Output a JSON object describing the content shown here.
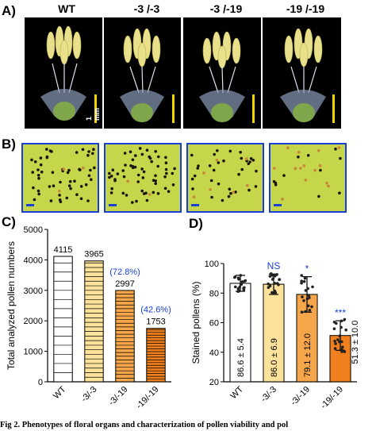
{
  "panels": {
    "A": "A)",
    "B": "B)",
    "C": "C)",
    "D": "D)"
  },
  "genotypes": [
    "WT",
    "-3 /-3",
    "-3 /-19",
    "-19 /-19"
  ],
  "scale_label": "1 mm",
  "colors": {
    "scale_bar": "#f2d500",
    "frame_blue": "#1a3fd6",
    "annot_blue": "#1a3fd6",
    "bar_wt": "#ffffff",
    "bar_3_3": "#fce29a",
    "bar_3_19": "#f5a54a",
    "bar_19_19": "#f07f1e"
  },
  "chart_data": [
    {
      "type": "bar",
      "ylabel": "Total analyzed pollen numbers",
      "categories": [
        "WT",
        "-3/-3",
        "-3/-19",
        "-19/-19"
      ],
      "values": [
        4115,
        3965,
        2997,
        1753
      ],
      "value_labels": [
        "4115",
        "3965",
        "2997",
        "1753"
      ],
      "annotations": [
        "",
        "",
        "(72.8%)",
        "(42.6%)"
      ],
      "ylim": [
        0,
        5000
      ],
      "yticks": [
        "0",
        "1000",
        "2000",
        "3000",
        "4000",
        "5000"
      ]
    },
    {
      "type": "bar",
      "ylabel": "Stained pollens (%)",
      "categories": [
        "WT",
        "-3/-3",
        "-3/-19",
        "-19/-19"
      ],
      "values": [
        86.6,
        86.0,
        79.1,
        51.3
      ],
      "errors": [
        5.4,
        6.9,
        12.0,
        10.0
      ],
      "value_labels": [
        "86.6 ± 5.4",
        "86.0 ± 6.9",
        "79.1 ± 12.0",
        "51.3 ± 10.0"
      ],
      "significance": [
        "",
        "NS",
        "*",
        "***"
      ],
      "ylim": [
        20,
        100
      ],
      "yticks": [
        "20",
        "40",
        "60",
        "80",
        "100"
      ]
    }
  ],
  "caption": "Fig 2. Phenotypes of floral organs and characterization of pollen viability and pol"
}
